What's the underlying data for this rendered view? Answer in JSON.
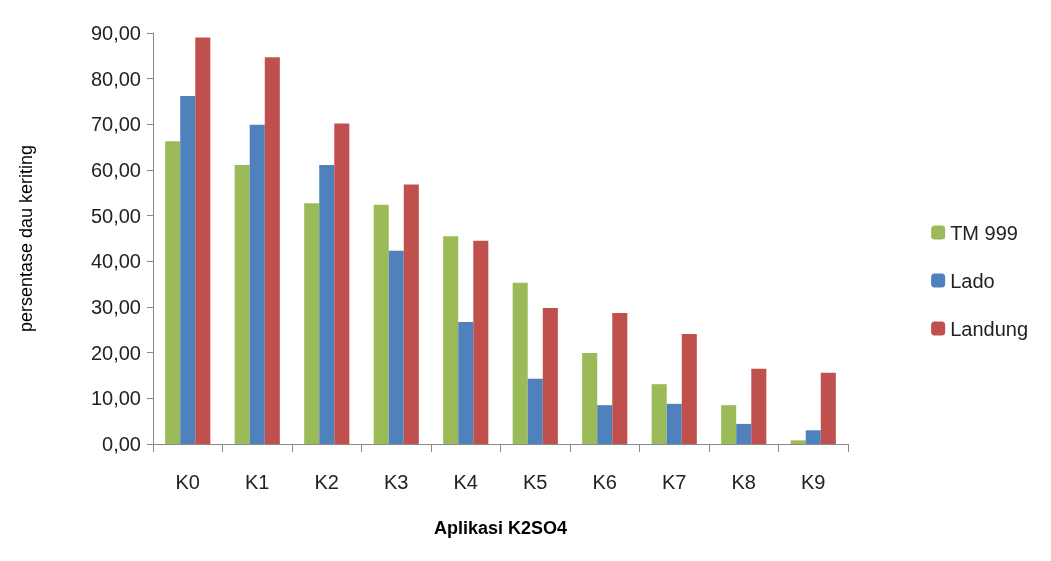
{
  "chart_data": {
    "type": "bar",
    "xlabel": "Aplikasi K2SO4",
    "ylabel": "persentase dau keriting",
    "categories": [
      "K0",
      "K1",
      "K2",
      "K3",
      "K4",
      "K5",
      "K6",
      "K7",
      "K8",
      "K9"
    ],
    "series": [
      {
        "name": "TM 999",
        "color": "#9bbb59",
        "values": [
          66.3,
          61.1,
          52.7,
          52.4,
          45.5,
          35.3,
          19.9,
          13.1,
          8.5,
          0.8
        ]
      },
      {
        "name": "Lado",
        "color": "#4f81bd",
        "values": [
          76.2,
          69.9,
          61.1,
          42.3,
          26.7,
          14.3,
          8.5,
          8.8,
          4.4,
          3.0
        ]
      },
      {
        "name": "Landung",
        "color": "#c0504d",
        "values": [
          89.0,
          84.7,
          70.2,
          56.8,
          44.5,
          29.8,
          28.7,
          24.1,
          16.5,
          15.6
        ]
      }
    ],
    "ylim": [
      0,
      90
    ],
    "yticks": [
      {
        "value": 0,
        "label": "0,00"
      },
      {
        "value": 10,
        "label": "10,00"
      },
      {
        "value": 20,
        "label": "20,00"
      },
      {
        "value": 30,
        "label": "30,00"
      },
      {
        "value": 40,
        "label": "40,00"
      },
      {
        "value": 50,
        "label": "50,00"
      },
      {
        "value": 60,
        "label": "60,00"
      },
      {
        "value": 70,
        "label": "70,00"
      },
      {
        "value": 80,
        "label": "80,00"
      },
      {
        "value": 90,
        "label": "90,00"
      }
    ],
    "grid": false,
    "legend": "right"
  }
}
